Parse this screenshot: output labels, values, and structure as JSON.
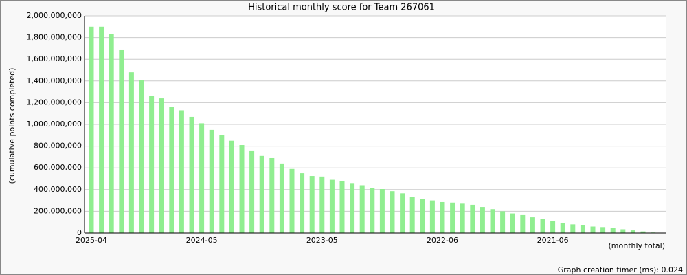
{
  "chart_data": {
    "type": "bar",
    "title": "Historical monthly score for Team 267061",
    "y_label": "(cumulative points completed)",
    "x_label": "(monthly total)",
    "footer": "Graph creation timer (ms): 0.024",
    "color": "#90ee90",
    "grid": true,
    "ylim": [
      0,
      2000000000
    ],
    "yticks": [
      0,
      {
        "value": 200000000,
        "label": "200,000,000"
      },
      {
        "value": 400000000,
        "label": "400,000,000"
      },
      {
        "value": 600000000,
        "label": "600,000,000"
      },
      {
        "value": 800000000,
        "label": "800,000,000"
      },
      {
        "value": 1000000000,
        "label": "1,000,000,000"
      },
      {
        "value": 1200000000,
        "label": "1,200,000,000"
      },
      {
        "value": 1400000000,
        "label": "1,400,000,000"
      },
      {
        "value": 1600000000,
        "label": "1,600,000,000"
      },
      {
        "value": 1800000000,
        "label": "1,800,000,000"
      },
      {
        "value": 2000000000,
        "label": "2,000,000,000"
      }
    ],
    "categories": [
      "2025-04",
      null,
      null,
      null,
      null,
      null,
      null,
      null,
      null,
      null,
      null,
      "2024-05",
      null,
      null,
      null,
      null,
      null,
      null,
      null,
      null,
      null,
      null,
      null,
      "2023-05",
      null,
      null,
      null,
      null,
      null,
      null,
      null,
      null,
      null,
      null,
      null,
      "2022-06",
      null,
      null,
      null,
      null,
      null,
      null,
      null,
      null,
      null,
      null,
      "2021-06",
      null,
      null,
      null,
      null,
      null,
      null,
      null,
      null,
      null,
      null
    ],
    "values": [
      1900000000,
      1900000000,
      1830000000,
      1690000000,
      1480000000,
      1410000000,
      1260000000,
      1240000000,
      1160000000,
      1130000000,
      1070000000,
      1010000000,
      950000000,
      900000000,
      850000000,
      810000000,
      760000000,
      710000000,
      690000000,
      640000000,
      590000000,
      550000000,
      525000000,
      520000000,
      490000000,
      480000000,
      460000000,
      440000000,
      415000000,
      405000000,
      385000000,
      365000000,
      330000000,
      315000000,
      300000000,
      285000000,
      280000000,
      270000000,
      260000000,
      240000000,
      220000000,
      200000000,
      180000000,
      165000000,
      145000000,
      130000000,
      110000000,
      95000000,
      80000000,
      70000000,
      60000000,
      55000000,
      45000000,
      35000000,
      25000000,
      15000000,
      5000000
    ]
  }
}
